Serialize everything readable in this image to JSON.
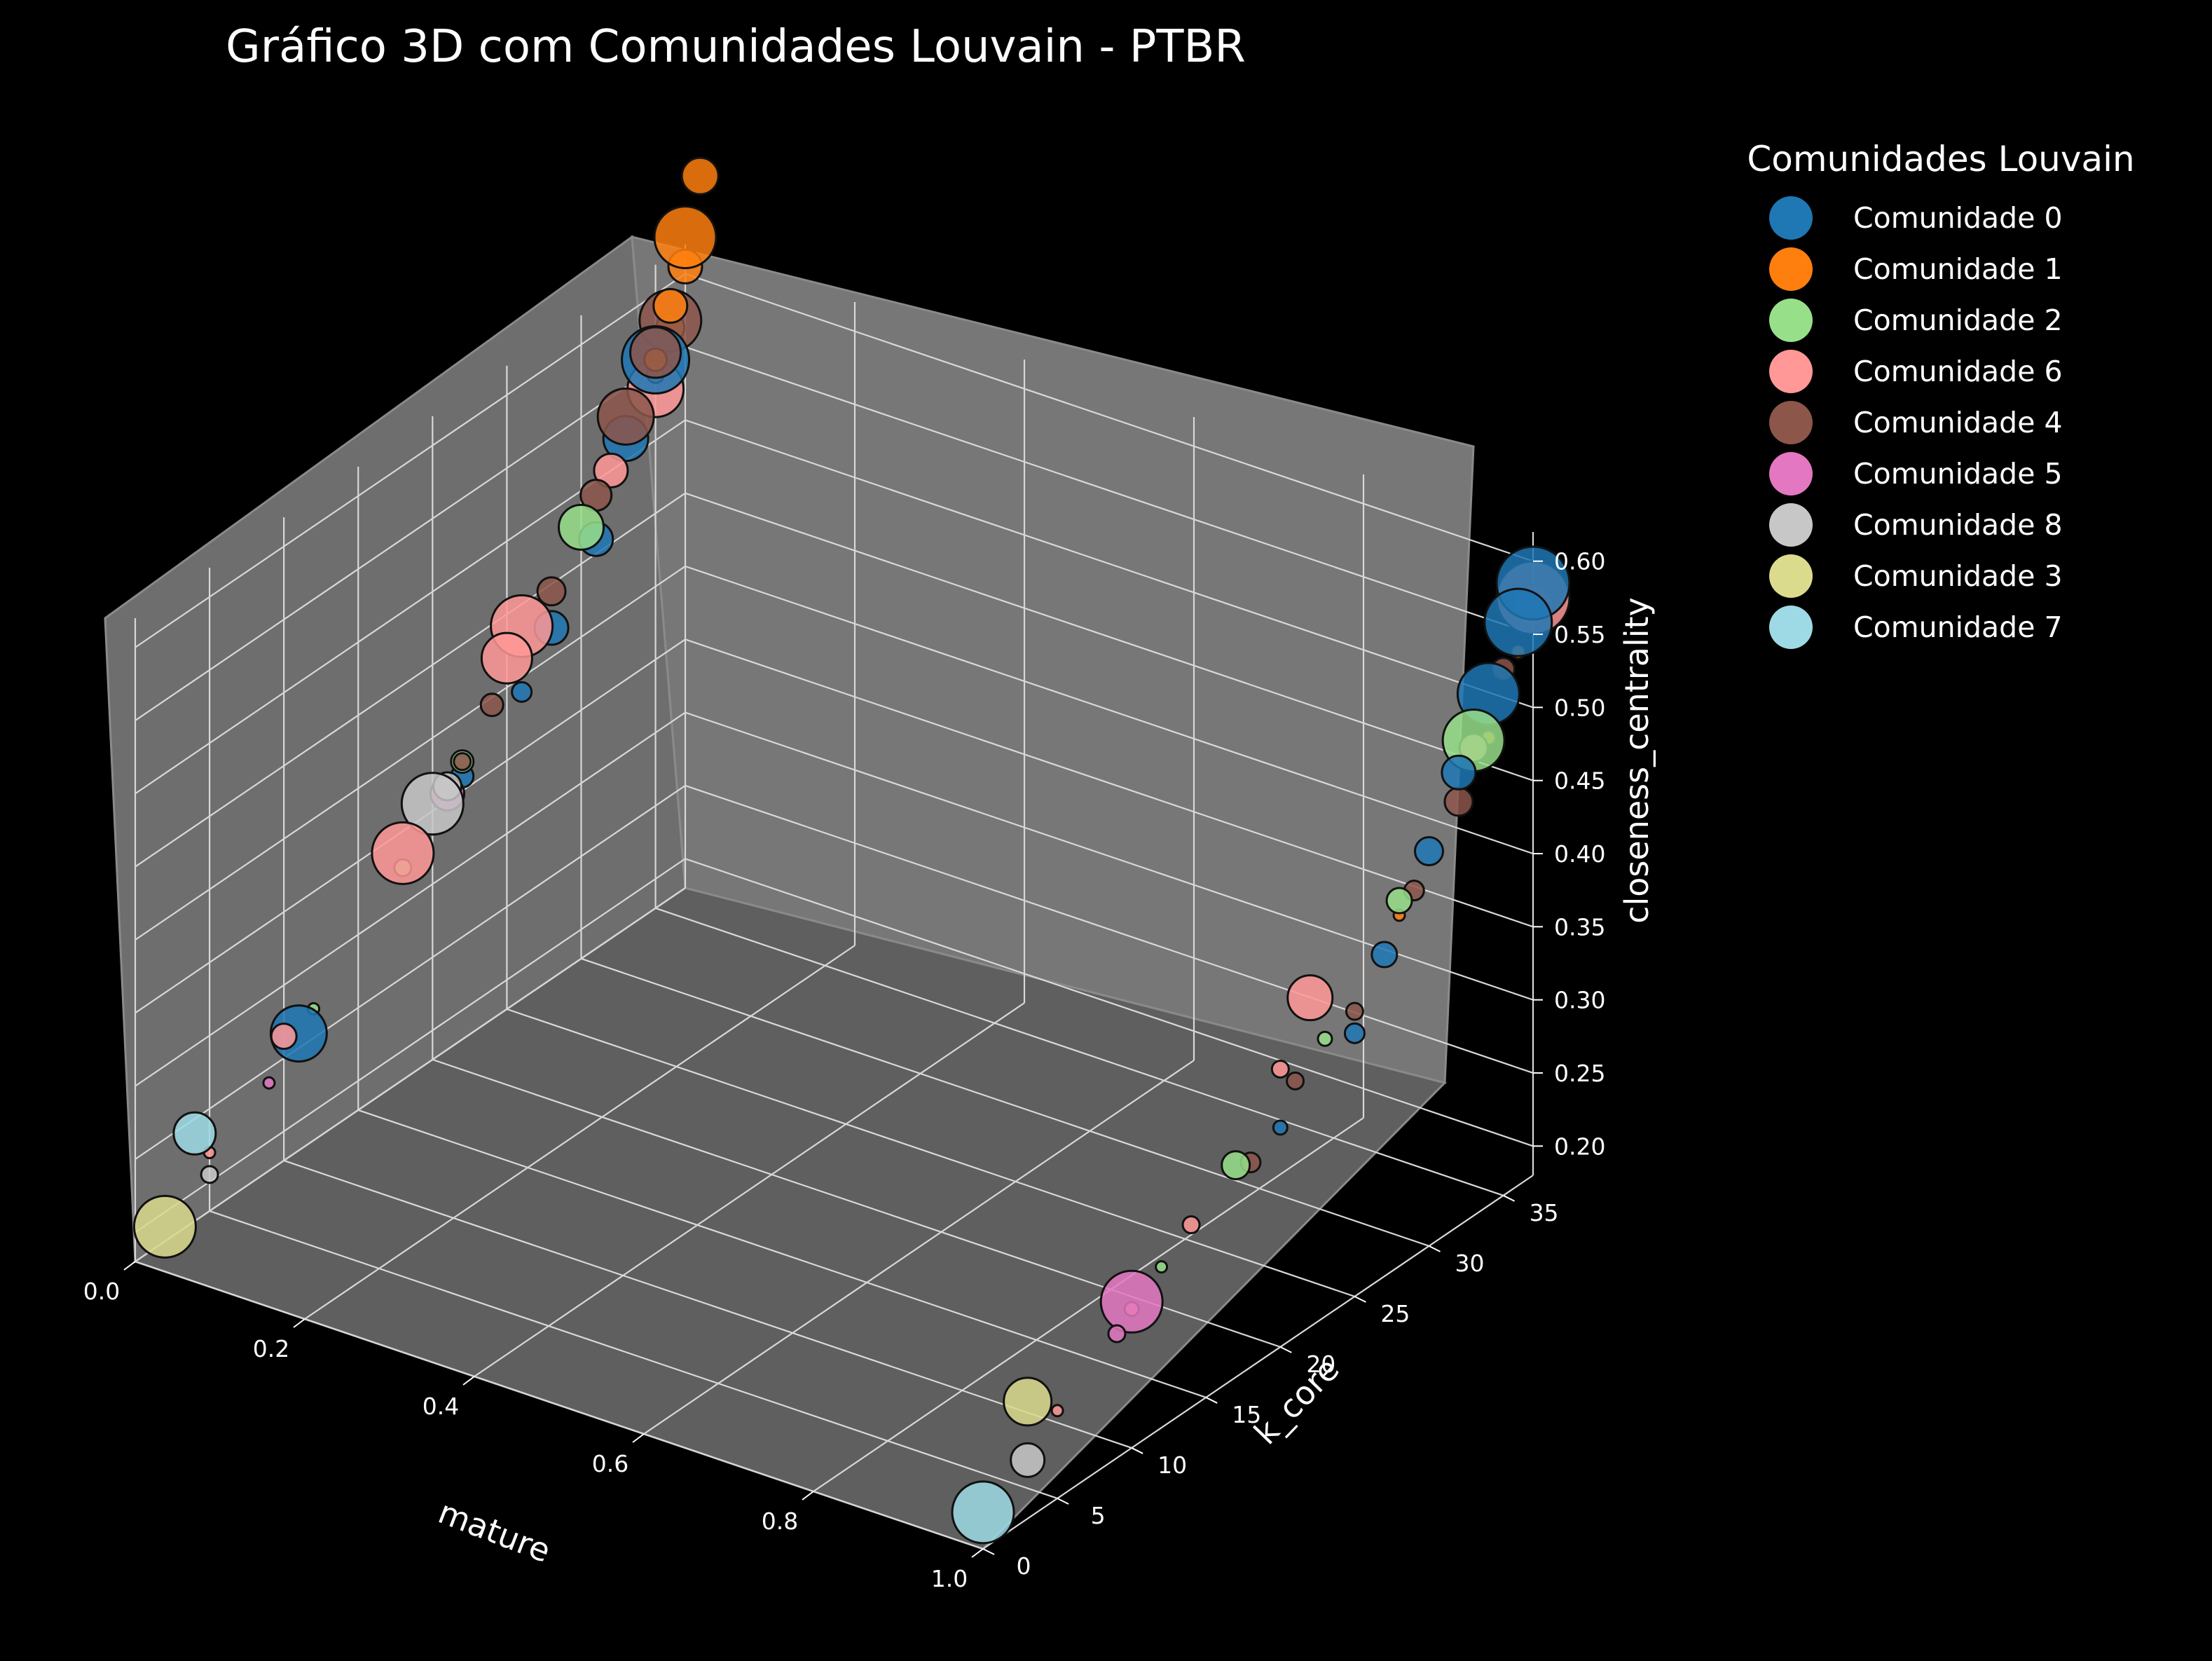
{
  "chart_data": {
    "type": "scatter",
    "projection": "3d",
    "title": "Gráfico 3D com Comunidades Louvain - PTBR",
    "xlabel": "mature",
    "ylabel": "k_core",
    "zlabel": "closeness_centrality",
    "xlim": [
      0.0,
      1.0
    ],
    "ylim": [
      0,
      37
    ],
    "zlim": [
      0.18,
      0.62
    ],
    "x_ticks": [
      "0.0",
      "0.2",
      "0.4",
      "0.6",
      "0.8",
      "1.0"
    ],
    "y_ticks": [
      "0",
      "5",
      "10",
      "15",
      "20",
      "25",
      "30",
      "35"
    ],
    "z_ticks": [
      "0.20",
      "0.25",
      "0.30",
      "0.35",
      "0.40",
      "0.45",
      "0.50",
      "0.55",
      "0.60"
    ],
    "background": "#000000",
    "pane_color": "#6e6e6e",
    "grid": true,
    "legend": {
      "title": "Comunidades Louvain",
      "position": "outside-right",
      "entries": [
        {
          "label": "Comunidade 0",
          "color": "#1f77b4"
        },
        {
          "label": "Comunidade 1",
          "color": "#ff7f0e"
        },
        {
          "label": "Comunidade 2",
          "color": "#98df8a"
        },
        {
          "label": "Comunidade 6",
          "color": "#ff9896"
        },
        {
          "label": "Comunidade 4",
          "color": "#8c564b"
        },
        {
          "label": "Comunidade 5",
          "color": "#e377c2"
        },
        {
          "label": "Comunidade 8",
          "color": "#c7c7c7"
        },
        {
          "label": "Comunidade 3",
          "color": "#dbdb8d"
        },
        {
          "label": "Comunidade 7",
          "color": "#9edae5"
        }
      ]
    },
    "series": [
      {
        "name": "Comunidade 0",
        "color": "#1f77b4",
        "points": [
          [
            0,
            35,
            0.555,
            24
          ],
          [
            0,
            33,
            0.515,
            16
          ],
          [
            0,
            31,
            0.46,
            12
          ],
          [
            0,
            28,
            0.42,
            12
          ],
          [
            0,
            11,
            0.26,
            20
          ],
          [
            0,
            22,
            0.36,
            8
          ],
          [
            0,
            26,
            0.39,
            7
          ],
          [
            1,
            37,
            0.585,
            26
          ],
          [
            1,
            36,
            0.565,
            24
          ],
          [
            1,
            34,
            0.53,
            22
          ],
          [
            1,
            32,
            0.49,
            12
          ],
          [
            1,
            30,
            0.45,
            10
          ],
          [
            1,
            27,
            0.4,
            9
          ],
          [
            1,
            25,
            0.36,
            7
          ],
          [
            1,
            20,
            0.33,
            5
          ]
        ]
      },
      {
        "name": "Comunidade 1",
        "color": "#ff7f0e",
        "points": [
          [
            0,
            38,
            0.66,
            13
          ],
          [
            0,
            37,
            0.625,
            22
          ],
          [
            0,
            37,
            0.605,
            12
          ],
          [
            0,
            36,
            0.585,
            12
          ],
          [
            0,
            36,
            0.57,
            10
          ],
          [
            0,
            35,
            0.555,
            8
          ],
          [
            0,
            35,
            0.545,
            6
          ],
          [
            1,
            36,
            0.545,
            5
          ],
          [
            1,
            34,
            0.5,
            5
          ],
          [
            1,
            28,
            0.42,
            4
          ]
        ]
      },
      {
        "name": "Comunidade 2",
        "color": "#98df8a",
        "points": [
          [
            0,
            30,
            0.475,
            16
          ],
          [
            0,
            22,
            0.37,
            8
          ],
          [
            0,
            18,
            0.325,
            6
          ],
          [
            0,
            12,
            0.27,
            4
          ],
          [
            1,
            33,
            0.505,
            22
          ],
          [
            1,
            28,
            0.43,
            9
          ],
          [
            1,
            23,
            0.37,
            5
          ],
          [
            1,
            17,
            0.325,
            10
          ],
          [
            1,
            12,
            0.29,
            4
          ]
        ]
      },
      {
        "name": "Comunidade 6",
        "color": "#ff9896",
        "points": [
          [
            0,
            35,
            0.535,
            20
          ],
          [
            0,
            32,
            0.5,
            12
          ],
          [
            0,
            26,
            0.435,
            22
          ],
          [
            0,
            25,
            0.42,
            18
          ],
          [
            0,
            18,
            0.335,
            22
          ],
          [
            0,
            10,
            0.265,
            9
          ],
          [
            0,
            5,
            0.22,
            4
          ],
          [
            1,
            37,
            0.575,
            26
          ],
          [
            1,
            33,
            0.5,
            10
          ],
          [
            1,
            22,
            0.405,
            16
          ],
          [
            1,
            20,
            0.37,
            6
          ],
          [
            1,
            14,
            0.305,
            6
          ],
          [
            1,
            10,
            0.275,
            5
          ],
          [
            1,
            5,
            0.24,
            4
          ]
        ]
      },
      {
        "name": "Comunidade 4",
        "color": "#8c564b",
        "points": [
          [
            0,
            36,
            0.575,
            22
          ],
          [
            0,
            35,
            0.56,
            18
          ],
          [
            0,
            33,
            0.53,
            20
          ],
          [
            0,
            31,
            0.49,
            11
          ],
          [
            0,
            28,
            0.445,
            10
          ],
          [
            0,
            24,
            0.395,
            8
          ],
          [
            0,
            22,
            0.37,
            6
          ],
          [
            1,
            37,
            0.57,
            14
          ],
          [
            1,
            35,
            0.54,
            8
          ],
          [
            1,
            32,
            0.47,
            10
          ],
          [
            1,
            29,
            0.43,
            7
          ],
          [
            1,
            25,
            0.375,
            6
          ],
          [
            1,
            21,
            0.355,
            6
          ],
          [
            1,
            18,
            0.32,
            7
          ]
        ]
      },
      {
        "name": "Comunidade 5",
        "color": "#e377c2",
        "points": [
          [
            0,
            21,
            0.355,
            12
          ],
          [
            0,
            9,
            0.24,
            4
          ],
          [
            1,
            10,
            0.28,
            22
          ],
          [
            1,
            9,
            0.265,
            6
          ]
        ]
      },
      {
        "name": "Comunidade 8",
        "color": "#c7c7c7",
        "points": [
          [
            0,
            20,
            0.355,
            22
          ],
          [
            0,
            21,
            0.36,
            10
          ],
          [
            0,
            5,
            0.205,
            6
          ],
          [
            1,
            3,
            0.22,
            12
          ]
        ]
      },
      {
        "name": "Comunidade 3",
        "color": "#dbdb8d",
        "points": [
          [
            0,
            2,
            0.19,
            22
          ],
          [
            1,
            3,
            0.26,
            17
          ]
        ]
      },
      {
        "name": "Comunidade 7",
        "color": "#9edae5",
        "points": [
          [
            0,
            4,
            0.24,
            15
          ],
          [
            1,
            0,
            0.205,
            22
          ]
        ]
      }
    ]
  }
}
